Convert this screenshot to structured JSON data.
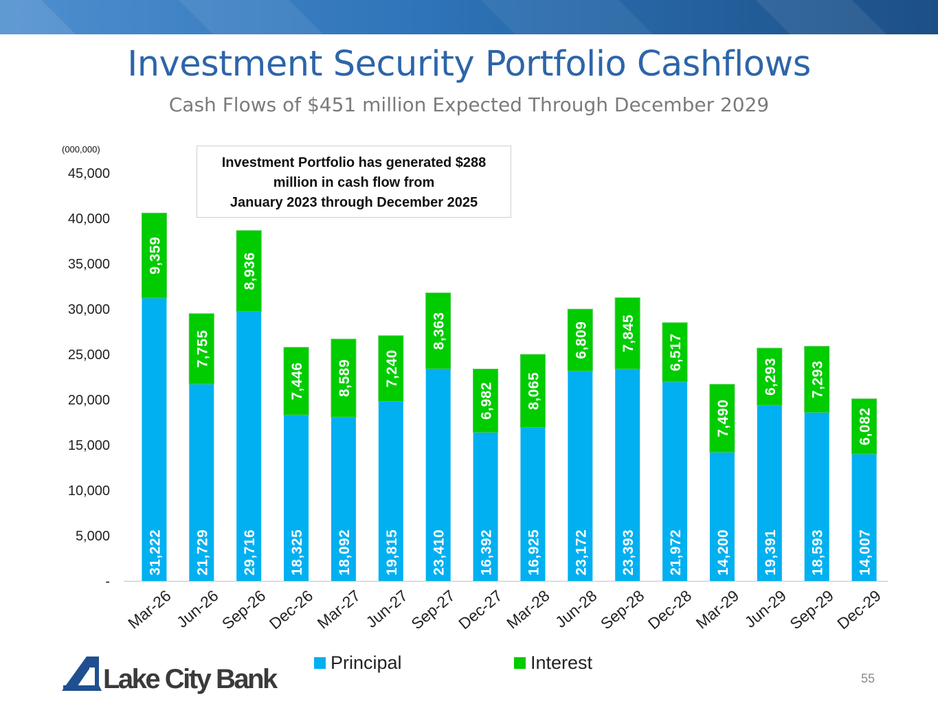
{
  "title": "Investment Security Portfolio Cashflows",
  "subtitle": "Cash Flows of $451 million Expected Through December 2029",
  "callout": {
    "line1": "Investment Portfolio has generated $288",
    "line2": "million in cash flow from",
    "line3": "January 2023 through December 2025"
  },
  "units_label": "(000,000)",
  "page_number": "55",
  "logo_text": "Lake City Bank",
  "colors": {
    "principal": "#00b0f0",
    "interest": "#00cc00",
    "title": "#2d65a9"
  },
  "chart_data": {
    "type": "bar",
    "stacked": true,
    "categories": [
      "Mar-26",
      "Jun-26",
      "Sep-26",
      "Dec-26",
      "Mar-27",
      "Jun-27",
      "Sep-27",
      "Dec-27",
      "Mar-28",
      "Jun-28",
      "Sep-28",
      "Dec-28",
      "Mar-29",
      "Jun-29",
      "Sep-29",
      "Dec-29"
    ],
    "series": [
      {
        "name": "Principal",
        "values": [
          31222,
          21729,
          29716,
          18325,
          18092,
          19815,
          23410,
          16392,
          16925,
          23172,
          23393,
          21972,
          14200,
          19391,
          18593,
          14007
        ]
      },
      {
        "name": "Interest",
        "values": [
          9359,
          7755,
          8936,
          7446,
          8589,
          7240,
          8363,
          6982,
          8065,
          6809,
          7845,
          6517,
          7490,
          6293,
          7293,
          6082
        ]
      }
    ],
    "y_ticks": [
      0,
      5000,
      10000,
      15000,
      20000,
      25000,
      30000,
      35000,
      40000,
      45000
    ],
    "y_tick_labels": [
      "-",
      "5,000",
      "10,000",
      "15,000",
      "20,000",
      "25,000",
      "30,000",
      "35,000",
      "40,000",
      "45,000"
    ],
    "ylim": [
      0,
      45000
    ],
    "title": "",
    "xlabel": "",
    "ylabel": "(000,000)",
    "legend": [
      "Principal",
      "Interest"
    ],
    "legend_position": "bottom",
    "grid": false
  }
}
